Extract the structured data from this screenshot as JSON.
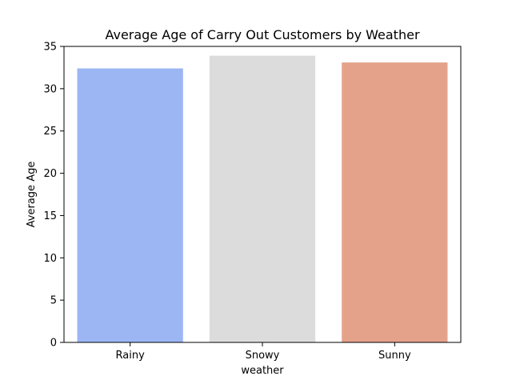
{
  "chart_data": {
    "type": "bar",
    "title": "Average Age of Carry Out Customers by Weather",
    "xlabel": "weather",
    "ylabel": "Average Age",
    "categories": [
      "Rainy",
      "Snowy",
      "Sunny"
    ],
    "values": [
      32.4,
      33.9,
      33.1
    ],
    "colors": [
      "#9bb6f3",
      "#dcdcdc",
      "#e5a28b"
    ],
    "ylim": [
      0,
      35
    ],
    "yticks": [
      "0",
      "5",
      "10",
      "15",
      "20",
      "25",
      "30",
      "35"
    ],
    "grid": false,
    "legend": "none"
  }
}
